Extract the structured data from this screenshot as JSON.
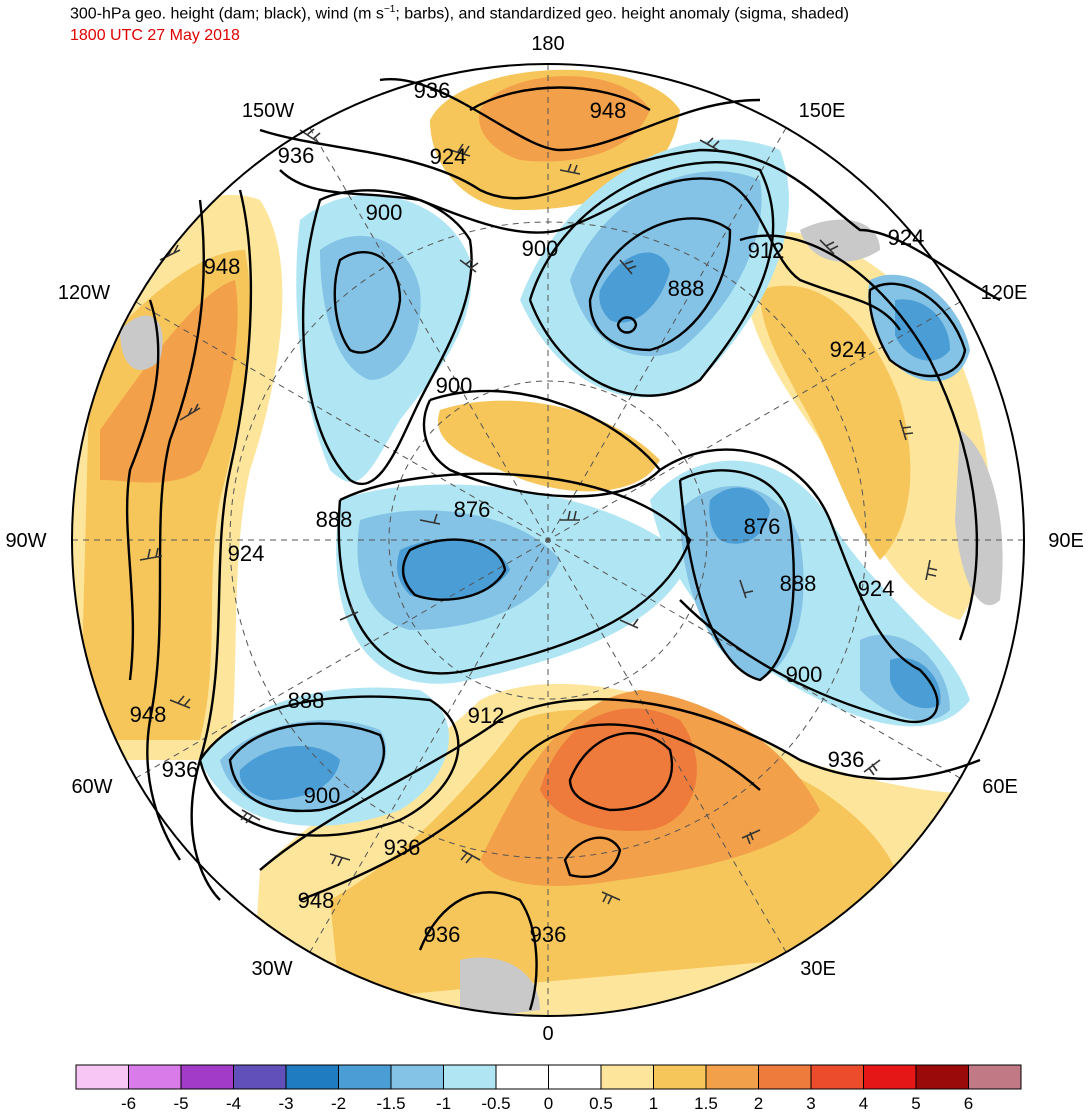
{
  "header": {
    "title_main": "300-hPa geo. height (dam; black), wind (m s",
    "title_exp": "−1",
    "title_rest": "; barbs), and standardized geo. height anomaly (sigma, shaded)",
    "subtitle": "1800 UTC 27 May 2018"
  },
  "map": {
    "lon_labels": {
      "n180": "180",
      "e150": "150E",
      "e120": "120E",
      "e90": "90E",
      "e60": "60E",
      "e30": "30E",
      "s0": "0",
      "w30": "30W",
      "w60": "60W",
      "w90": "90W",
      "w120": "120W",
      "w150": "150W"
    },
    "contour_labels": [
      {
        "id": "c1",
        "text": "936"
      },
      {
        "id": "c2",
        "text": "948"
      },
      {
        "id": "c3",
        "text": "924"
      },
      {
        "id": "c4",
        "text": "936"
      },
      {
        "id": "c5",
        "text": "900"
      },
      {
        "id": "c6",
        "text": "900"
      },
      {
        "id": "c7",
        "text": "912"
      },
      {
        "id": "c8",
        "text": "924"
      },
      {
        "id": "c9",
        "text": "948"
      },
      {
        "id": "c10",
        "text": "888"
      },
      {
        "id": "c11",
        "text": "924"
      },
      {
        "id": "c12",
        "text": "900"
      },
      {
        "id": "c13",
        "text": "876"
      },
      {
        "id": "c14",
        "text": "888"
      },
      {
        "id": "c15",
        "text": "876"
      },
      {
        "id": "c16",
        "text": "924"
      },
      {
        "id": "c17",
        "text": "888"
      },
      {
        "id": "c18",
        "text": "924"
      },
      {
        "id": "c19",
        "text": "900"
      },
      {
        "id": "c20",
        "text": "888"
      },
      {
        "id": "c21",
        "text": "948"
      },
      {
        "id": "c22",
        "text": "936"
      },
      {
        "id": "c23",
        "text": "912"
      },
      {
        "id": "c24",
        "text": "900"
      },
      {
        "id": "c25",
        "text": "936"
      },
      {
        "id": "c26",
        "text": "936"
      },
      {
        "id": "c27",
        "text": "948"
      },
      {
        "id": "c28",
        "text": "936"
      },
      {
        "id": "c29",
        "text": "936"
      }
    ]
  },
  "colorbar": {
    "colors": [
      "#f7c6f5",
      "#d97be8",
      "#a23bc7",
      "#6150b9",
      "#1f7cc0",
      "#4a9dd5",
      "#84c3e6",
      "#b0e6f3",
      "#ffffff",
      "#ffffff",
      "#fde69c",
      "#f6c65a",
      "#f3a04a",
      "#ee7a3b",
      "#ec4b2c",
      "#e51717",
      "#9b0a0a",
      "#c17a85"
    ],
    "ticks": [
      "-6",
      "-5",
      "-4",
      "-3",
      "-2",
      "-1.5",
      "-1",
      "-0.5",
      "0",
      "0.5",
      "1",
      "1.5",
      "2",
      "3",
      "4",
      "5",
      "6"
    ]
  }
}
